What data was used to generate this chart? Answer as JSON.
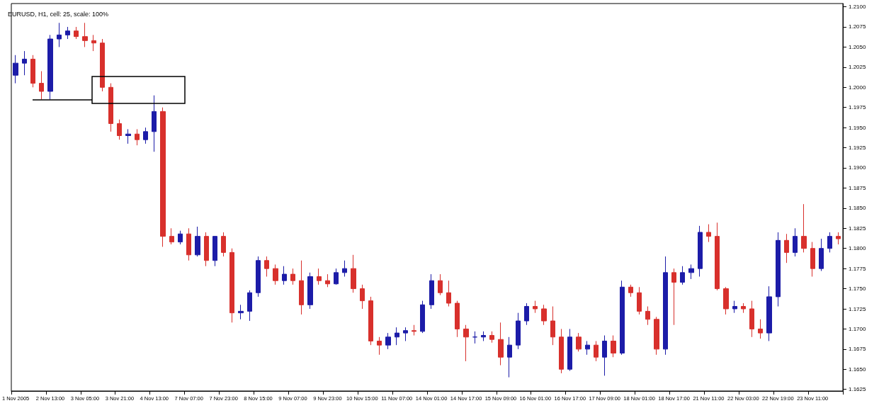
{
  "chart_data": {
    "type": "candlestick",
    "title": "EURUSD, H1, cell: 25, scale: 100%",
    "categories": [
      "1 Nov 2005",
      null,
      null,
      null,
      "2 Nov 13:00",
      null,
      null,
      null,
      "3 Nov 05:00",
      null,
      null,
      null,
      "3 Nov 21:00",
      null,
      null,
      null,
      "4 Nov 13:00",
      null,
      null,
      null,
      "7 Nov 07:00",
      null,
      null,
      null,
      "7 Nov 23:00",
      null,
      null,
      null,
      "8 Nov 15:00",
      null,
      null,
      null,
      "9 Nov 07:00",
      null,
      null,
      null,
      "9 Nov 23:00",
      null,
      null,
      null,
      "10 Nov 15:00",
      null,
      null,
      null,
      "11 Nov 07:00",
      null,
      null,
      null,
      "14 Nov 01:00",
      null,
      null,
      null,
      "14 Nov 17:00",
      null,
      null,
      null,
      "15 Nov 09:00",
      null,
      null,
      null,
      "16 Nov 01:00",
      null,
      null,
      null,
      "16 Nov 17:00",
      null,
      null,
      null,
      "17 Nov 09:00",
      null,
      null,
      null,
      "18 Nov 01:00",
      null,
      null,
      null,
      "18 Nov 17:00",
      null,
      null,
      null,
      "21 Nov 11:00",
      null,
      null,
      null,
      "22 Nov 03:00",
      null,
      null,
      null,
      "22 Nov 19:00",
      null,
      null,
      null,
      "23 Nov 11:00",
      null,
      null,
      null
    ],
    "ohlc": [
      [
        1.2015,
        1.204,
        1.2005,
        1.203
      ],
      [
        1.203,
        1.2045,
        1.2015,
        1.2035
      ],
      [
        1.2035,
        1.204,
        1.2,
        1.2005
      ],
      [
        1.2005,
        1.202,
        1.1985,
        1.1995
      ],
      [
        1.1995,
        1.2065,
        1.1985,
        1.206
      ],
      [
        1.206,
        1.208,
        1.205,
        1.2065
      ],
      [
        1.2065,
        1.2075,
        1.206,
        1.207
      ],
      [
        1.207,
        1.2075,
        1.206,
        1.2063
      ],
      [
        1.2063,
        1.208,
        1.205,
        1.2058
      ],
      [
        1.2058,
        1.2065,
        1.2045,
        1.2055
      ],
      [
        1.2055,
        1.206,
        1.1995,
        1.2
      ],
      [
        1.2,
        1.2005,
        1.1945,
        1.1955
      ],
      [
        1.1955,
        1.196,
        1.1935,
        1.194
      ],
      [
        1.194,
        1.1948,
        1.193,
        1.1942
      ],
      [
        1.1942,
        1.1948,
        1.1928,
        1.1935
      ],
      [
        1.1935,
        1.195,
        1.193,
        1.1945
      ],
      [
        1.1945,
        1.199,
        1.192,
        1.197
      ],
      [
        1.197,
        1.1975,
        1.1802,
        1.1815
      ],
      [
        1.1815,
        1.1825,
        1.1805,
        1.1808
      ],
      [
        1.1808,
        1.1822,
        1.1805,
        1.1818
      ],
      [
        1.1818,
        1.1825,
        1.1785,
        1.1792
      ],
      [
        1.1792,
        1.1827,
        1.179,
        1.1815
      ],
      [
        1.1815,
        1.182,
        1.1778,
        1.1785
      ],
      [
        1.1785,
        1.1815,
        1.1778,
        1.1815
      ],
      [
        1.1815,
        1.182,
        1.179,
        1.1795
      ],
      [
        1.1795,
        1.18,
        1.1708,
        1.172
      ],
      [
        1.172,
        1.173,
        1.1712,
        1.1722
      ],
      [
        1.1722,
        1.1748,
        1.171,
        1.1745
      ],
      [
        1.1745,
        1.179,
        1.174,
        1.1785
      ],
      [
        1.1785,
        1.179,
        1.1765,
        1.1775
      ],
      [
        1.1775,
        1.178,
        1.1755,
        1.176
      ],
      [
        1.176,
        1.1778,
        1.1755,
        1.1768
      ],
      [
        1.1768,
        1.1775,
        1.1755,
        1.176
      ],
      [
        1.176,
        1.1785,
        1.1718,
        1.173
      ],
      [
        1.173,
        1.177,
        1.1725,
        1.1765
      ],
      [
        1.1765,
        1.1775,
        1.1755,
        1.176
      ],
      [
        1.176,
        1.1768,
        1.1752,
        1.1756
      ],
      [
        1.1756,
        1.1775,
        1.1755,
        1.177
      ],
      [
        1.177,
        1.1785,
        1.1765,
        1.1775
      ],
      [
        1.1775,
        1.1792,
        1.1745,
        1.175
      ],
      [
        1.175,
        1.1755,
        1.1725,
        1.1735
      ],
      [
        1.1735,
        1.174,
        1.168,
        1.1685
      ],
      [
        1.1685,
        1.169,
        1.1668,
        1.168
      ],
      [
        1.168,
        1.1695,
        1.1675,
        1.169
      ],
      [
        1.169,
        1.1702,
        1.168,
        1.1695
      ],
      [
        1.1695,
        1.1702,
        1.1685,
        1.1698
      ],
      [
        1.1698,
        1.1705,
        1.1692,
        1.1697
      ],
      [
        1.1697,
        1.1735,
        1.1695,
        1.173
      ],
      [
        1.173,
        1.1768,
        1.1725,
        1.176
      ],
      [
        1.176,
        1.1768,
        1.1742,
        1.1745
      ],
      [
        1.1745,
        1.176,
        1.1728,
        1.1732
      ],
      [
        1.1732,
        1.1735,
        1.169,
        1.17
      ],
      [
        1.17,
        1.1705,
        1.166,
        1.169
      ],
      [
        1.169,
        1.1697,
        1.1682,
        1.169
      ],
      [
        1.169,
        1.1697,
        1.1685,
        1.1692
      ],
      [
        1.1692,
        1.1697,
        1.1683,
        1.1687
      ],
      [
        1.1687,
        1.1708,
        1.1655,
        1.1665
      ],
      [
        1.1665,
        1.169,
        1.164,
        1.168
      ],
      [
        1.168,
        1.172,
        1.1675,
        1.171
      ],
      [
        1.171,
        1.1732,
        1.1705,
        1.1728
      ],
      [
        1.1728,
        1.1735,
        1.172,
        1.1725
      ],
      [
        1.1725,
        1.173,
        1.1705,
        1.171
      ],
      [
        1.171,
        1.1728,
        1.168,
        1.169
      ],
      [
        1.169,
        1.17,
        1.1645,
        1.165
      ],
      [
        1.165,
        1.17,
        1.1648,
        1.169
      ],
      [
        1.169,
        1.1695,
        1.1672,
        1.1675
      ],
      [
        1.1675,
        1.1685,
        1.1668,
        1.168
      ],
      [
        1.168,
        1.1685,
        1.166,
        1.1665
      ],
      [
        1.1665,
        1.1692,
        1.1642,
        1.1685
      ],
      [
        1.1685,
        1.1692,
        1.1665,
        1.167
      ],
      [
        1.167,
        1.176,
        1.1668,
        1.1752
      ],
      [
        1.1752,
        1.1755,
        1.174,
        1.1745
      ],
      [
        1.1745,
        1.1752,
        1.1718,
        1.1722
      ],
      [
        1.1722,
        1.1728,
        1.1705,
        1.1712
      ],
      [
        1.1712,
        1.1715,
        1.1668,
        1.1675
      ],
      [
        1.1675,
        1.179,
        1.1668,
        1.177
      ],
      [
        1.177,
        1.1775,
        1.1705,
        1.1758
      ],
      [
        1.1758,
        1.1778,
        1.1755,
        1.177
      ],
      [
        1.177,
        1.178,
        1.1762,
        1.1775
      ],
      [
        1.1775,
        1.1828,
        1.1765,
        1.182
      ],
      [
        1.182,
        1.183,
        1.1808,
        1.1815
      ],
      [
        1.1815,
        1.1832,
        1.1748,
        1.175
      ],
      [
        1.175,
        1.1752,
        1.1718,
        1.1725
      ],
      [
        1.1725,
        1.1735,
        1.172,
        1.1728
      ],
      [
        1.1728,
        1.1732,
        1.172,
        1.1725
      ],
      [
        1.1725,
        1.1735,
        1.169,
        1.17
      ],
      [
        1.17,
        1.1712,
        1.1688,
        1.1695
      ],
      [
        1.1695,
        1.1753,
        1.1685,
        1.174
      ],
      [
        1.174,
        1.182,
        1.1728,
        1.181
      ],
      [
        1.181,
        1.1818,
        1.1782,
        1.1795
      ],
      [
        1.1795,
        1.1825,
        1.179,
        1.1815
      ],
      [
        1.1815,
        1.1855,
        1.1795,
        1.18
      ],
      [
        1.18,
        1.1808,
        1.1765,
        1.1775
      ],
      [
        1.1775,
        1.1812,
        1.1772,
        1.18
      ],
      [
        1.18,
        1.182,
        1.1795,
        1.1815
      ],
      [
        1.1815,
        1.182,
        1.1805,
        1.1812
      ]
    ],
    "ylim": [
      1.1623,
      1.2104
    ],
    "yticks": [
      {
        "value": 1.1625,
        "label": "1.1625"
      },
      {
        "value": 1.165,
        "label": "1.1650"
      },
      {
        "value": 1.1675,
        "label": "1.1675"
      },
      {
        "value": 1.17,
        "label": "1.1700"
      },
      {
        "value": 1.1725,
        "label": "1.1725"
      },
      {
        "value": 1.175,
        "label": "1.1750"
      },
      {
        "value": 1.1775,
        "label": "1.1775"
      },
      {
        "value": 1.18,
        "label": "1.1800"
      },
      {
        "value": 1.1825,
        "label": "1.1825"
      },
      {
        "value": 1.185,
        "label": "1.1850"
      },
      {
        "value": 1.1875,
        "label": "1.1875"
      },
      {
        "value": 1.19,
        "label": "1.1900"
      },
      {
        "value": 1.1925,
        "label": "1.1925"
      },
      {
        "value": 1.195,
        "label": "1.1950"
      },
      {
        "value": 1.1975,
        "label": "1.1975"
      },
      {
        "value": 1.2,
        "label": "1.2000"
      },
      {
        "value": 1.2025,
        "label": "1.2025"
      },
      {
        "value": 1.205,
        "label": "1.2050"
      },
      {
        "value": 1.2075,
        "label": "1.2075"
      },
      {
        "value": 1.21,
        "label": "1.2100"
      }
    ],
    "grid": false
  }
}
